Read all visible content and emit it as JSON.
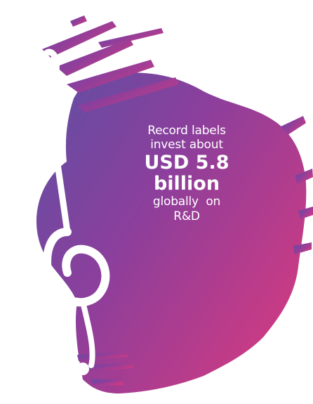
{
  "colors": {
    "gradient_start": "#6b4aa6",
    "gradient_mid": "#8f3f99",
    "gradient_end": "#c73a83",
    "text": "#ffffff",
    "background": "#ffffff"
  },
  "icon": "treble-clef-icon",
  "text": {
    "line1": "Record labels",
    "line2": "invest about",
    "amount": "USD 5.8",
    "unit": "billion",
    "line3": "globally  on",
    "line4": "R&D"
  }
}
